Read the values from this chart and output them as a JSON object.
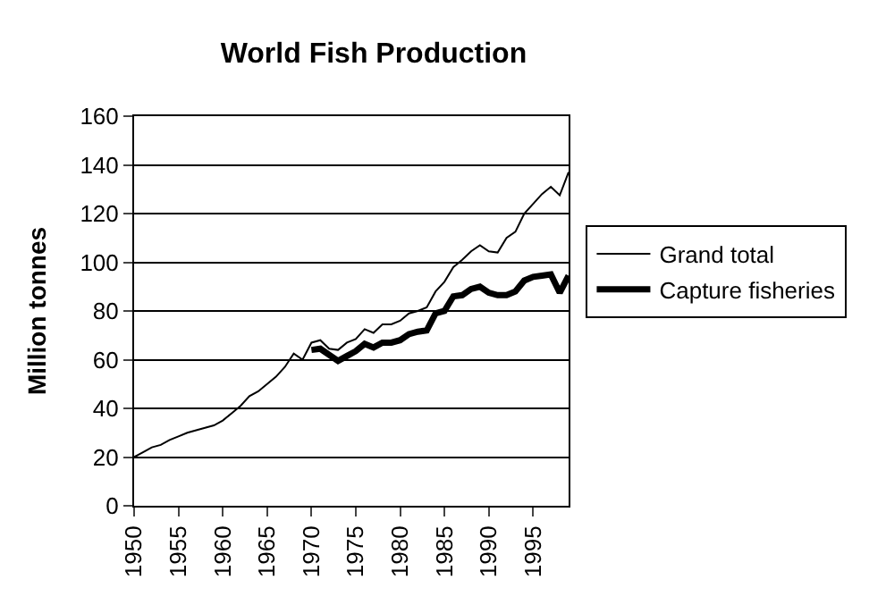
{
  "chart_data": {
    "type": "line",
    "title": "World Fish Production",
    "ylabel": "Million tonnes",
    "x": [
      1950,
      1951,
      1952,
      1953,
      1954,
      1955,
      1956,
      1957,
      1958,
      1959,
      1960,
      1961,
      1962,
      1963,
      1964,
      1965,
      1966,
      1967,
      1968,
      1969,
      1970,
      1971,
      1972,
      1973,
      1974,
      1975,
      1976,
      1977,
      1978,
      1979,
      1980,
      1981,
      1982,
      1983,
      1984,
      1985,
      1986,
      1987,
      1988,
      1989,
      1990,
      1991,
      1992,
      1993,
      1994,
      1995,
      1996,
      1997,
      1998,
      1999
    ],
    "series": [
      {
        "name": "Grand total",
        "color": "#000000",
        "values": [
          20,
          22,
          24,
          25,
          27,
          28.5,
          30,
          31,
          32,
          33,
          35,
          38,
          41,
          45,
          47,
          50,
          53,
          57,
          62.5,
          60,
          67,
          68,
          64.5,
          64,
          67,
          68.5,
          72.5,
          71,
          74.5,
          74.5,
          76,
          79,
          80,
          81.5,
          88,
          92,
          98,
          101,
          104.5,
          107,
          104.5,
          104,
          110,
          112.5,
          120,
          124,
          128,
          131,
          127.5,
          137
        ]
      },
      {
        "name": "Capture fisheries",
        "color": "#000000",
        "values": [
          null,
          null,
          null,
          null,
          null,
          null,
          null,
          null,
          null,
          null,
          null,
          null,
          null,
          null,
          null,
          null,
          null,
          null,
          null,
          null,
          64,
          64.5,
          62,
          59.5,
          61.5,
          63.5,
          66.5,
          65,
          67,
          67,
          68,
          70.5,
          71.5,
          72,
          79,
          80,
          86,
          86.5,
          89,
          90,
          87.5,
          86.5,
          86.5,
          88,
          92.5,
          94,
          94.5,
          95,
          87.5,
          94.5
        ]
      }
    ],
    "xlim": [
      1950,
      1999
    ],
    "xticks": [
      1950,
      1955,
      1960,
      1965,
      1970,
      1975,
      1980,
      1985,
      1990,
      1995
    ],
    "ylim": [
      0,
      160
    ],
    "yticks": [
      0,
      20,
      40,
      60,
      80,
      100,
      120,
      140,
      160
    ],
    "grid": "y",
    "legend": "right",
    "marker": "none",
    "line_style": "solid"
  }
}
